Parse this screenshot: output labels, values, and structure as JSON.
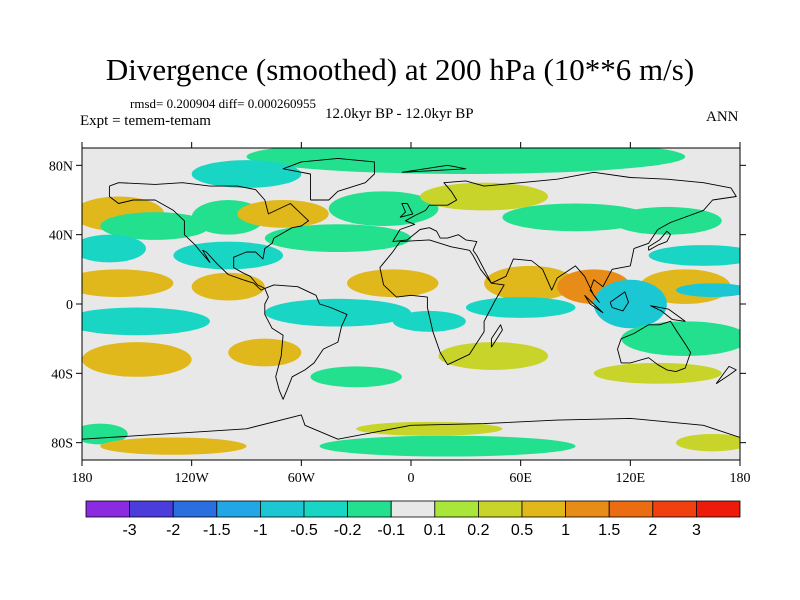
{
  "chart_data": {
    "type": "heatmap",
    "title": "Divergence (smoothed) at 200 hPa (10**6 m/s)",
    "stats": "rmsd= 0.200904 diff= 0.000260955",
    "experiment": "Expt = temem-temam",
    "period": "12.0kyr BP - 12.0kyr BP",
    "season": "ANN",
    "lon_range": [
      -180,
      180
    ],
    "lat_range": [
      -90,
      90
    ],
    "x_ticks": [
      {
        "value": -180,
        "label": "180"
      },
      {
        "value": -120,
        "label": "120W"
      },
      {
        "value": -60,
        "label": "60W"
      },
      {
        "value": 0,
        "label": "0"
      },
      {
        "value": 60,
        "label": "60E"
      },
      {
        "value": 120,
        "label": "120E"
      },
      {
        "value": 180,
        "label": "180"
      }
    ],
    "y_ticks": [
      {
        "value": 80,
        "label": "80N"
      },
      {
        "value": 40,
        "label": "40N"
      },
      {
        "value": 0,
        "label": "0"
      },
      {
        "value": -40,
        "label": "40S"
      },
      {
        "value": -80,
        "label": "80S"
      }
    ],
    "colorbar": {
      "colors": [
        "#8a2be2",
        "#4b3cdc",
        "#2a6fe0",
        "#22a7e6",
        "#1cc7d4",
        "#19d6c4",
        "#22e08e",
        "#e8e8e8",
        "#a8e63a",
        "#c8d42a",
        "#e0b81c",
        "#e88c18",
        "#ec6c12",
        "#f04010",
        "#ee1a0a"
      ],
      "labels": [
        "-3",
        "-2",
        "-1.5",
        "-1",
        "-0.5",
        "-0.2",
        "-0.1",
        "0.1",
        "0.2",
        "0.5",
        "1",
        "1.5",
        "2",
        "3"
      ]
    },
    "fields": [
      {
        "lon": 30,
        "lat": 85,
        "rx": 120,
        "ry": 10,
        "value": -0.2
      },
      {
        "lon": -90,
        "lat": 75,
        "rx": 30,
        "ry": 8,
        "value": -0.5
      },
      {
        "lon": -160,
        "lat": 52,
        "rx": 25,
        "ry": 10,
        "value": 0.5
      },
      {
        "lon": -140,
        "lat": 45,
        "rx": 30,
        "ry": 8,
        "value": -0.2
      },
      {
        "lon": -100,
        "lat": 50,
        "rx": 20,
        "ry": 10,
        "value": -0.2
      },
      {
        "lon": -70,
        "lat": 52,
        "rx": 25,
        "ry": 8,
        "value": 0.5
      },
      {
        "lon": -15,
        "lat": 55,
        "rx": 30,
        "ry": 10,
        "value": -0.2
      },
      {
        "lon": 40,
        "lat": 62,
        "rx": 35,
        "ry": 8,
        "value": 0.2
      },
      {
        "lon": 90,
        "lat": 50,
        "rx": 40,
        "ry": 8,
        "value": -0.2
      },
      {
        "lon": 140,
        "lat": 48,
        "rx": 30,
        "ry": 8,
        "value": -0.2
      },
      {
        "lon": -165,
        "lat": 32,
        "rx": 20,
        "ry": 8,
        "value": -0.5
      },
      {
        "lon": -100,
        "lat": 28,
        "rx": 30,
        "ry": 8,
        "value": -0.5
      },
      {
        "lon": -40,
        "lat": 38,
        "rx": 40,
        "ry": 8,
        "value": -0.2
      },
      {
        "lon": 160,
        "lat": 28,
        "rx": 30,
        "ry": 6,
        "value": -0.5
      },
      {
        "lon": -160,
        "lat": 12,
        "rx": 30,
        "ry": 8,
        "value": 0.5
      },
      {
        "lon": -100,
        "lat": 10,
        "rx": 20,
        "ry": 8,
        "value": 0.5
      },
      {
        "lon": -10,
        "lat": 12,
        "rx": 25,
        "ry": 8,
        "value": 0.5
      },
      {
        "lon": 65,
        "lat": 12,
        "rx": 25,
        "ry": 10,
        "value": 0.5
      },
      {
        "lon": 100,
        "lat": 10,
        "rx": 20,
        "ry": 10,
        "value": 1
      },
      {
        "lon": 150,
        "lat": 10,
        "rx": 25,
        "ry": 10,
        "value": 0.5
      },
      {
        "lon": 120,
        "lat": 0,
        "rx": 20,
        "ry": 14,
        "value": -1
      },
      {
        "lon": 165,
        "lat": 8,
        "rx": 20,
        "ry": 4,
        "value": -1
      },
      {
        "lon": 60,
        "lat": -2,
        "rx": 30,
        "ry": 6,
        "value": -0.5
      },
      {
        "lon": -40,
        "lat": -5,
        "rx": 40,
        "ry": 8,
        "value": -0.5
      },
      {
        "lon": -150,
        "lat": -10,
        "rx": 40,
        "ry": 8,
        "value": -0.5
      },
      {
        "lon": 150,
        "lat": -20,
        "rx": 35,
        "ry": 10,
        "value": -0.2
      },
      {
        "lon": 10,
        "lat": -10,
        "rx": 20,
        "ry": 6,
        "value": -0.5
      },
      {
        "lon": -150,
        "lat": -32,
        "rx": 30,
        "ry": 10,
        "value": 0.5
      },
      {
        "lon": -80,
        "lat": -28,
        "rx": 20,
        "ry": 8,
        "value": 0.5
      },
      {
        "lon": 45,
        "lat": -30,
        "rx": 30,
        "ry": 8,
        "value": 0.2
      },
      {
        "lon": 135,
        "lat": -40,
        "rx": 35,
        "ry": 6,
        "value": 0.2
      },
      {
        "lon": -30,
        "lat": -42,
        "rx": 25,
        "ry": 6,
        "value": -0.2
      },
      {
        "lon": -170,
        "lat": -75,
        "rx": 15,
        "ry": 6,
        "value": -0.2
      },
      {
        "lon": -130,
        "lat": -82,
        "rx": 40,
        "ry": 5,
        "value": 0.5
      },
      {
        "lon": 20,
        "lat": -82,
        "rx": 70,
        "ry": 6,
        "value": -0.2
      },
      {
        "lon": 10,
        "lat": -72,
        "rx": 40,
        "ry": 4,
        "value": 0.2
      },
      {
        "lon": 165,
        "lat": -80,
        "rx": 20,
        "ry": 5,
        "value": 0.2
      }
    ],
    "coastlines": [
      [
        [
          -165,
          68
        ],
        [
          -160,
          70
        ],
        [
          -140,
          69
        ],
        [
          -125,
          70
        ],
        [
          -110,
          68
        ],
        [
          -95,
          68
        ],
        [
          -85,
          66
        ],
        [
          -80,
          60
        ],
        [
          -78,
          52
        ],
        [
          -66,
          58
        ],
        [
          -60,
          52
        ],
        [
          -56,
          48
        ],
        [
          -60,
          45
        ],
        [
          -65,
          44
        ],
        [
          -70,
          41
        ],
        [
          -75,
          38
        ],
        [
          -76,
          35
        ],
        [
          -80,
          32
        ],
        [
          -81,
          26
        ],
        [
          -85,
          30
        ],
        [
          -90,
          30
        ],
        [
          -97,
          27
        ],
        [
          -97,
          21
        ],
        [
          -92,
          18
        ],
        [
          -88,
          16
        ],
        [
          -84,
          11
        ],
        [
          -80,
          9
        ],
        [
          -82,
          8
        ],
        [
          -86,
          12
        ],
        [
          -92,
          14
        ],
        [
          -100,
          17
        ],
        [
          -106,
          23
        ],
        [
          -112,
          30
        ],
        [
          -114,
          31
        ],
        [
          -110,
          24
        ],
        [
          -115,
          30
        ],
        [
          -118,
          34
        ],
        [
          -124,
          40
        ],
        [
          -124,
          46
        ],
        [
          -124,
          48
        ],
        [
          -130,
          54
        ],
        [
          -140,
          60
        ],
        [
          -152,
          60
        ],
        [
          -160,
          58
        ],
        [
          -165,
          62
        ],
        [
          -165,
          68
        ]
      ],
      [
        [
          -80,
          9
        ],
        [
          -75,
          11
        ],
        [
          -62,
          10
        ],
        [
          -52,
          5
        ],
        [
          -50,
          0
        ],
        [
          -44,
          -2
        ],
        [
          -35,
          -6
        ],
        [
          -38,
          -13
        ],
        [
          -40,
          -22
        ],
        [
          -48,
          -26
        ],
        [
          -53,
          -34
        ],
        [
          -58,
          -38
        ],
        [
          -65,
          -42
        ],
        [
          -68,
          -50
        ],
        [
          -70,
          -55
        ],
        [
          -72,
          -50
        ],
        [
          -74,
          -42
        ],
        [
          -71,
          -30
        ],
        [
          -70,
          -18
        ],
        [
          -76,
          -14
        ],
        [
          -80,
          -6
        ],
        [
          -80,
          0
        ],
        [
          -78,
          4
        ],
        [
          -80,
          9
        ]
      ],
      [
        [
          -10,
          36
        ],
        [
          -6,
          43
        ],
        [
          2,
          46
        ],
        [
          -3,
          48
        ],
        [
          2,
          51
        ],
        [
          8,
          54
        ],
        [
          10,
          57
        ],
        [
          20,
          57
        ],
        [
          25,
          60
        ],
        [
          22,
          65
        ],
        [
          18,
          70
        ],
        [
          30,
          71
        ],
        [
          40,
          68
        ],
        [
          60,
          70
        ],
        [
          80,
          72
        ],
        [
          100,
          76
        ],
        [
          120,
          73
        ],
        [
          140,
          72
        ],
        [
          160,
          70
        ],
        [
          175,
          67
        ],
        [
          178,
          62
        ],
        [
          165,
          60
        ],
        [
          160,
          54
        ],
        [
          142,
          47
        ],
        [
          135,
          43
        ],
        [
          130,
          35
        ],
        [
          122,
          32
        ],
        [
          120,
          22
        ],
        [
          110,
          20
        ],
        [
          105,
          10
        ],
        [
          100,
          14
        ],
        [
          98,
          8
        ],
        [
          103,
          1
        ],
        [
          100,
          5
        ],
        [
          95,
          16
        ],
        [
          90,
          22
        ],
        [
          80,
          15
        ],
        [
          77,
          8
        ],
        [
          72,
          20
        ],
        [
          66,
          25
        ],
        [
          56,
          26
        ],
        [
          52,
          16
        ],
        [
          44,
          12
        ],
        [
          36,
          28
        ],
        [
          34,
          31
        ],
        [
          36,
          36
        ],
        [
          30,
          37
        ],
        [
          26,
          40
        ],
        [
          20,
          38
        ],
        [
          16,
          38
        ],
        [
          14,
          42
        ],
        [
          10,
          44
        ],
        [
          5,
          43
        ],
        [
          -2,
          37
        ],
        [
          -10,
          36
        ]
      ],
      [
        [
          -6,
          36
        ],
        [
          10,
          37
        ],
        [
          22,
          33
        ],
        [
          32,
          31
        ],
        [
          34,
          28
        ],
        [
          38,
          20
        ],
        [
          44,
          12
        ],
        [
          51,
          11
        ],
        [
          46,
          2
        ],
        [
          40,
          -10
        ],
        [
          40,
          -16
        ],
        [
          35,
          -24
        ],
        [
          32,
          -29
        ],
        [
          20,
          -35
        ],
        [
          16,
          -28
        ],
        [
          12,
          -16
        ],
        [
          9,
          -2
        ],
        [
          9,
          4
        ],
        [
          0,
          5
        ],
        [
          -8,
          4
        ],
        [
          -15,
          11
        ],
        [
          -17,
          21
        ],
        [
          -10,
          30
        ],
        [
          -6,
          36
        ]
      ],
      [
        [
          115,
          -20
        ],
        [
          122,
          -17
        ],
        [
          130,
          -12
        ],
        [
          136,
          -12
        ],
        [
          142,
          -10
        ],
        [
          145,
          -15
        ],
        [
          150,
          -23
        ],
        [
          153,
          -28
        ],
        [
          150,
          -37
        ],
        [
          145,
          -39
        ],
        [
          140,
          -38
        ],
        [
          135,
          -35
        ],
        [
          130,
          -31
        ],
        [
          120,
          -34
        ],
        [
          115,
          -34
        ],
        [
          113,
          -26
        ],
        [
          115,
          -20
        ]
      ],
      [
        [
          -55,
          60
        ],
        [
          -45,
          60
        ],
        [
          -40,
          65
        ],
        [
          -25,
          70
        ],
        [
          -20,
          75
        ],
        [
          -20,
          82
        ],
        [
          -40,
          84
        ],
        [
          -60,
          82
        ],
        [
          -70,
          78
        ],
        [
          -55,
          75
        ],
        [
          -55,
          60
        ]
      ],
      [
        [
          -180,
          -78
        ],
        [
          -150,
          -76
        ],
        [
          -120,
          -74
        ],
        [
          -90,
          -72
        ],
        [
          -60,
          -64
        ],
        [
          -58,
          -70
        ],
        [
          -40,
          -78
        ],
        [
          0,
          -70
        ],
        [
          40,
          -69
        ],
        [
          80,
          -67
        ],
        [
          120,
          -66
        ],
        [
          160,
          -70
        ],
        [
          180,
          -77
        ]
      ],
      [
        [
          -6,
          50
        ],
        [
          -3,
          53
        ],
        [
          -5,
          58
        ],
        [
          -2,
          58
        ],
        [
          1,
          52
        ],
        [
          -6,
          50
        ]
      ],
      [
        [
          130,
          31
        ],
        [
          135,
          34
        ],
        [
          140,
          36
        ],
        [
          142,
          40
        ],
        [
          140,
          42
        ],
        [
          136,
          37
        ],
        [
          130,
          33
        ],
        [
          130,
          31
        ]
      ],
      [
        [
          95,
          5
        ],
        [
          105,
          -5
        ],
        [
          98,
          0
        ],
        [
          95,
          5
        ]
      ],
      [
        [
          109,
          1
        ],
        [
          117,
          7
        ],
        [
          119,
          1
        ],
        [
          116,
          -4
        ],
        [
          110,
          -2
        ],
        [
          109,
          1
        ]
      ],
      [
        [
          131,
          -1
        ],
        [
          141,
          -3
        ],
        [
          150,
          -10
        ],
        [
          143,
          -9
        ],
        [
          137,
          -4
        ],
        [
          131,
          -1
        ]
      ],
      [
        [
          44,
          -25
        ],
        [
          50,
          -15
        ],
        [
          49,
          -12
        ],
        [
          44,
          -20
        ],
        [
          44,
          -25
        ]
      ],
      [
        [
          167,
          -46
        ],
        [
          174,
          -41
        ],
        [
          178,
          -38
        ],
        [
          174,
          -36
        ],
        [
          167,
          -46
        ]
      ],
      [
        [
          -5,
          76
        ],
        [
          30,
          78
        ],
        [
          20,
          80
        ],
        [
          -5,
          76
        ]
      ]
    ]
  }
}
